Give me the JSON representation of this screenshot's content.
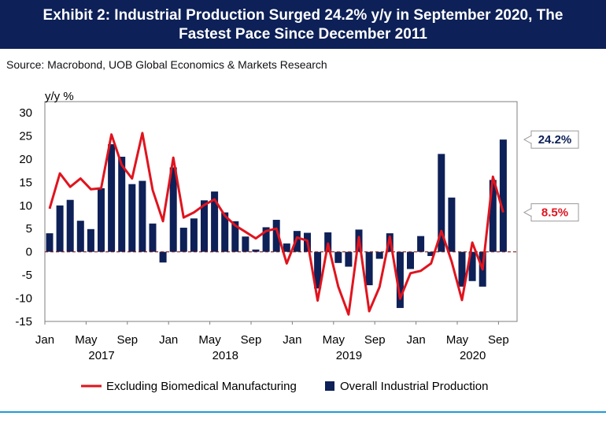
{
  "header": {
    "line1": "Exhibit 2: Industrial Production Surged 24.2% y/y in September 2020, The",
    "line2": "Fastest Pace Since December 2011"
  },
  "source": "Source: Macrobond, UOB Global Economics & Markets Research",
  "colors": {
    "header_bg": "#0d2057",
    "bar": "#0d2057",
    "line": "#e0141e",
    "zero_line": "#8b1a1a",
    "rule": "#1f9bd7"
  },
  "chart_data": {
    "type": "bar",
    "ylabel": "y/y %",
    "ylim": [
      -15,
      30
    ],
    "yticks": [
      "30",
      "25",
      "20",
      "15",
      "10",
      "5",
      "0",
      "-5",
      "-10",
      "-15"
    ],
    "x_tick_labels": [
      "Jan",
      "May",
      "Sep",
      "Jan",
      "May",
      "Sep",
      "Jan",
      "May",
      "Sep",
      "Jan",
      "May",
      "Sep"
    ],
    "year_labels": [
      "2017",
      "2018",
      "2019",
      "2020"
    ],
    "categories": [
      "Jan 2017",
      "Feb 2017",
      "Mar 2017",
      "Apr 2017",
      "May 2017",
      "Jun 2017",
      "Jul 2017",
      "Aug 2017",
      "Sep 2017",
      "Oct 2017",
      "Nov 2017",
      "Dec 2017",
      "Jan 2018",
      "Feb 2018",
      "Mar 2018",
      "Apr 2018",
      "May 2018",
      "Jun 2018",
      "Jul 2018",
      "Aug 2018",
      "Sep 2018",
      "Oct 2018",
      "Nov 2018",
      "Dec 2018",
      "Jan 2019",
      "Feb 2019",
      "Mar 2019",
      "Apr 2019",
      "May 2019",
      "Jun 2019",
      "Jul 2019",
      "Aug 2019",
      "Sep 2019",
      "Oct 2019",
      "Nov 2019",
      "Dec 2019",
      "Jan 2020",
      "Feb 2020",
      "Mar 2020",
      "Apr 2020",
      "May 2020",
      "Jun 2020",
      "Jul 2020",
      "Aug 2020",
      "Sep 2020"
    ],
    "series": [
      {
        "name": "Overall Industrial Production",
        "kind": "bar",
        "values": [
          4.0,
          10.0,
          11.2,
          6.7,
          4.9,
          13.7,
          23.2,
          20.5,
          14.6,
          15.3,
          6.1,
          -2.3,
          18.2,
          5.2,
          7.2,
          11.1,
          13.0,
          8.5,
          6.6,
          3.3,
          0.5,
          5.3,
          6.9,
          1.8,
          4.5,
          4.1,
          -7.9,
          4.2,
          -2.4,
          -3.2,
          4.8,
          -7.2,
          -1.5,
          4.0,
          -12.1,
          -3.7,
          3.4,
          -0.9,
          21.1,
          11.7,
          -7.5,
          -6.3,
          -7.5,
          15.5,
          24.2
        ]
      },
      {
        "name": "Excluding Biomedical Manufacturing",
        "kind": "line",
        "values": [
          9.3,
          16.9,
          14.0,
          15.8,
          13.5,
          13.7,
          25.3,
          18.7,
          15.8,
          25.6,
          13.3,
          6.6,
          20.3,
          7.4,
          8.5,
          10.1,
          11.3,
          7.8,
          5.7,
          4.3,
          2.9,
          4.5,
          5.0,
          -2.5,
          3.1,
          2.4,
          -10.5,
          1.8,
          -7.5,
          -13.5,
          3.2,
          -12.8,
          -7.6,
          3.3,
          -10.1,
          -4.6,
          -4.1,
          -2.5,
          4.5,
          -2.1,
          -10.4,
          2.0,
          -3.8,
          16.2,
          8.5
        ]
      }
    ],
    "callouts": [
      {
        "label": "24.2%",
        "series": "Overall Industrial Production",
        "color": "#0d2057",
        "value": 24.2
      },
      {
        "label": "8.5%",
        "series": "Excluding Biomedical Manufacturing",
        "color": "#e0141e",
        "value": 8.5
      }
    ],
    "legend": {
      "position": "bottom-center",
      "items": [
        "Excluding Biomedical Manufacturing",
        "Overall Industrial Production"
      ]
    },
    "grid": false
  }
}
